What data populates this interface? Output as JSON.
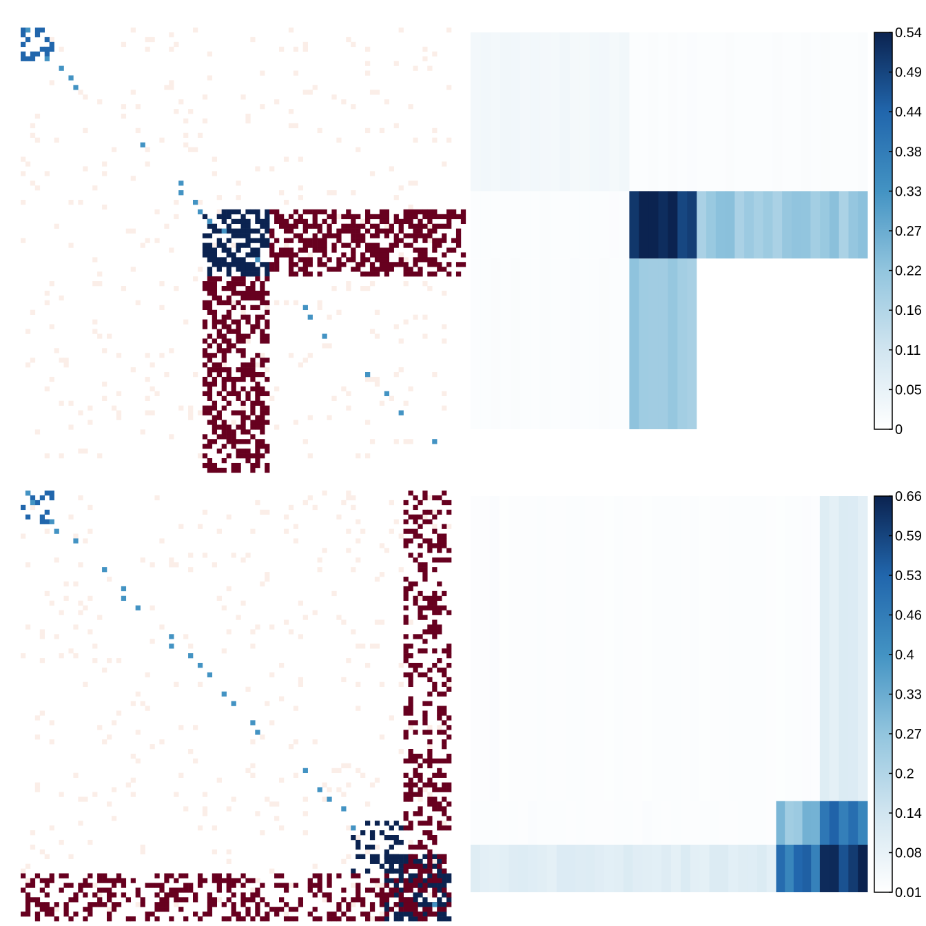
{
  "chart_data": [
    {
      "type": "heatmap",
      "panel": "top-left adjacency matrix",
      "blocks": [
        {
          "rows": [
            0,
            1
          ],
          "cols": [
            0,
            1
          ],
          "sign": "positive",
          "level": 0.75
        },
        {
          "rows": [
            11,
            14
          ],
          "cols": [
            11,
            14
          ],
          "sign": "positive",
          "level": 1.0
        },
        {
          "rows": [
            11,
            14
          ],
          "cols": [
            15,
            26
          ],
          "sign": "negative",
          "level": 1.0
        },
        {
          "rows": [
            15,
            26
          ],
          "cols": [
            11,
            14
          ],
          "sign": "negative",
          "level": 1.0
        }
      ]
    },
    {
      "type": "heatmap",
      "panel": "top-right block probability matrix",
      "value_range": [
        0,
        0.54
      ],
      "colorbar_ticks": [
        "0.54",
        "0.49",
        "0.44",
        "0.38",
        "0.33",
        "0.27",
        "0.22",
        "0.16",
        "0.11",
        "0.05",
        "0"
      ],
      "blocks": [
        {
          "row_block": 1,
          "col_block": 1,
          "value": 0.03
        },
        {
          "row_block": 1,
          "col_block": 2,
          "value": 0.01
        },
        {
          "row_block": 1,
          "col_block": 3,
          "value": 0.01
        },
        {
          "row_block": 2,
          "col_block": 1,
          "value": 0.01
        },
        {
          "row_block": 2,
          "col_block": 2,
          "value": 0.54
        },
        {
          "row_block": 2,
          "col_block": 3,
          "value": 0.2
        },
        {
          "row_block": 3,
          "col_block": 1,
          "value": 0.01
        },
        {
          "row_block": 3,
          "col_block": 2,
          "value": 0.2
        },
        {
          "row_block": 3,
          "col_block": 3,
          "value": 0.0
        }
      ]
    },
    {
      "type": "heatmap",
      "panel": "bottom-left adjacency matrix",
      "blocks": [
        {
          "rows": [
            0,
            1
          ],
          "cols": [
            0,
            1
          ],
          "sign": "positive",
          "level": 0.6
        },
        {
          "rows": [
            20,
            22
          ],
          "cols": [
            20,
            22
          ],
          "sign": "positive",
          "level": 0.85
        },
        {
          "rows": [
            22,
            25
          ],
          "cols": [
            22,
            25
          ],
          "sign": "positive",
          "level": 1.0
        },
        {
          "rows": [
            0,
            25
          ],
          "cols": [
            23,
            25
          ],
          "sign": "negative",
          "level": 0.8
        },
        {
          "rows": [
            23,
            25
          ],
          "cols": [
            0,
            22
          ],
          "sign": "negative",
          "level": 0.8
        }
      ]
    },
    {
      "type": "heatmap",
      "panel": "bottom-right block probability matrix",
      "value_range": [
        0.01,
        0.66
      ],
      "colorbar_ticks": [
        "0.66",
        "0.59",
        "0.53",
        "0.46",
        "0.4",
        "0.33",
        "0.27",
        "0.2",
        "0.14",
        "0.08",
        "0.01"
      ],
      "blocks": [
        {
          "row_block": 1,
          "col_block": 1,
          "value": 0.02
        },
        {
          "row_block": 1,
          "col_block": 2,
          "value": 0.02
        },
        {
          "row_block": 1,
          "col_block": 3,
          "value": 0.1
        },
        {
          "row_block": 2,
          "col_block": 1,
          "value": 0.02
        },
        {
          "row_block": 2,
          "col_block": 2,
          "value": 0.28
        },
        {
          "row_block": 2,
          "col_block": 3,
          "value": 0.5
        },
        {
          "row_block": 3,
          "col_block": 1,
          "value": 0.1
        },
        {
          "row_block": 3,
          "col_block": 2,
          "value": 0.5
        },
        {
          "row_block": 3,
          "col_block": 3,
          "value": 0.66
        }
      ]
    }
  ]
}
